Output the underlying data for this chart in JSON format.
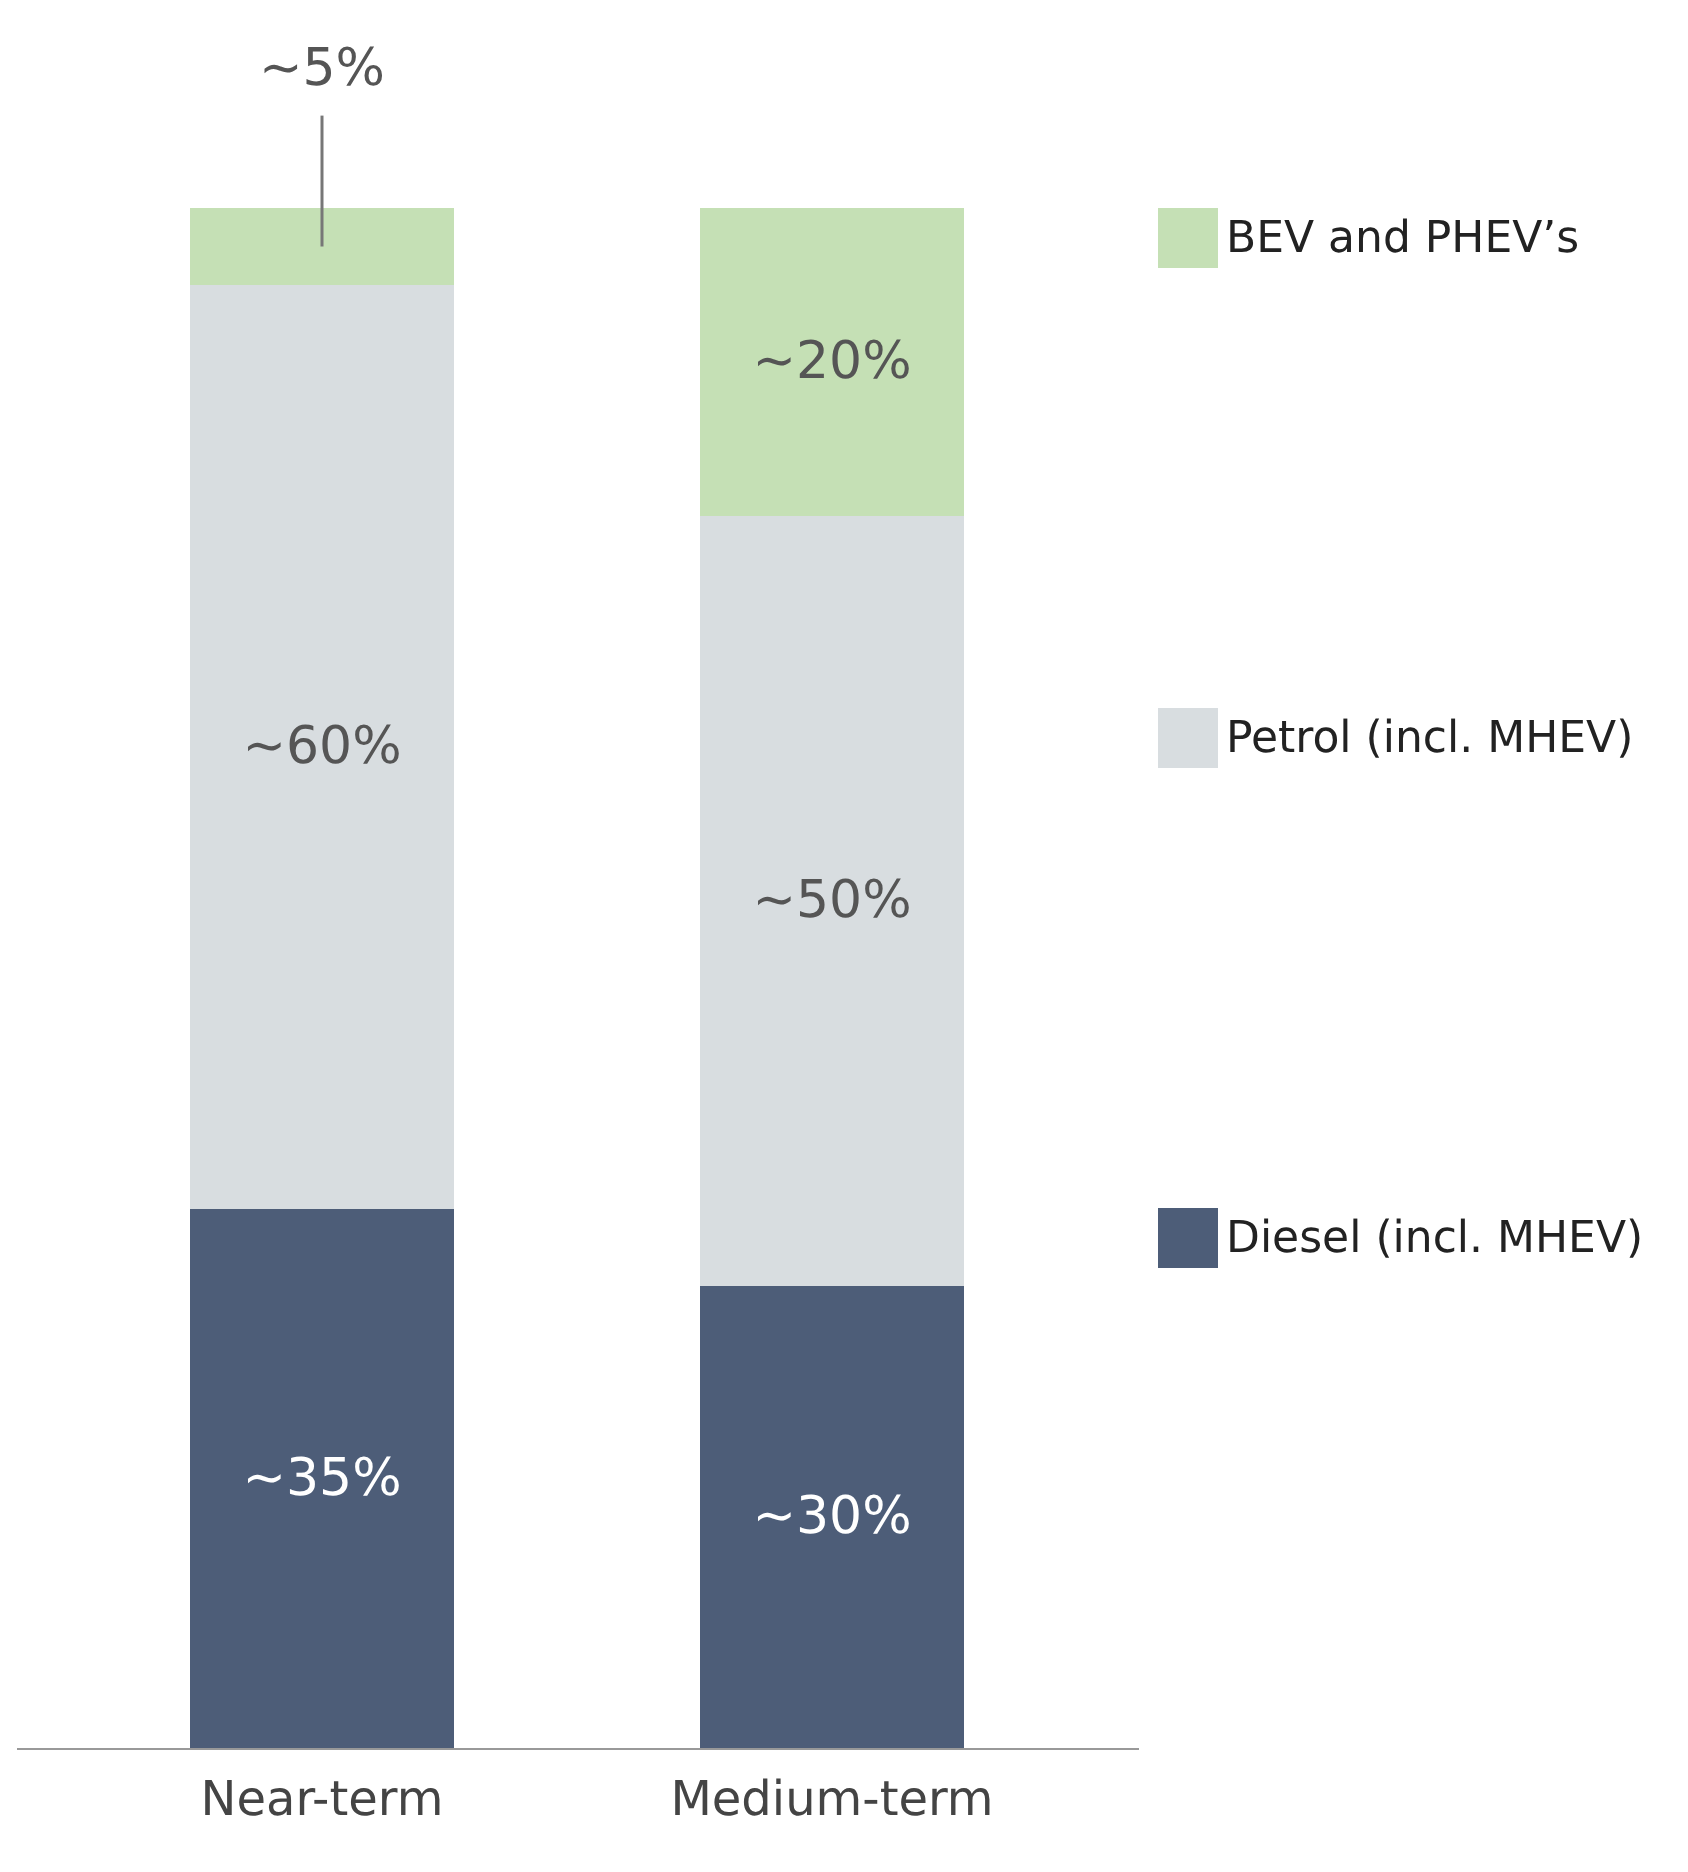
{
  "chart_data": {
    "type": "bar",
    "stacked": true,
    "categories": [
      "Near-term",
      "Medium-term"
    ],
    "series": [
      {
        "name": "Diesel (incl. MHEV)",
        "color": "#4d5d78",
        "values": [
          35,
          30
        ],
        "value_labels": [
          "~35%",
          "~30%"
        ]
      },
      {
        "name": "Petrol (incl. MHEV)",
        "color": "#d8dde0",
        "values": [
          60,
          50
        ],
        "value_labels": [
          "~60%",
          "~50%"
        ]
      },
      {
        "name": "BEV and PHEV’s",
        "color": "#c5e0b5",
        "values": [
          5,
          20
        ],
        "value_labels": [
          "~5%",
          "~20%"
        ]
      }
    ],
    "legend": "right",
    "grid": false
  }
}
